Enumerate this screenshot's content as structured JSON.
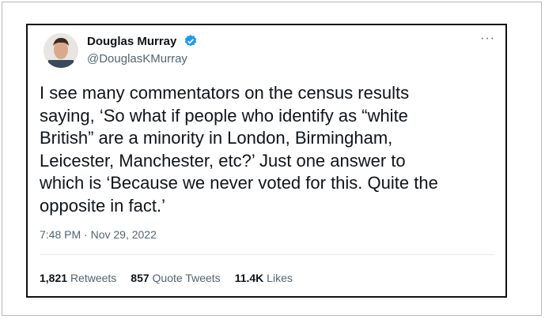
{
  "user": {
    "name": "Douglas Murray",
    "handle": "@DouglasKMurray"
  },
  "tweet": {
    "text_lines": [
      "I see many commentators on the census results",
      "saying, ‘So what if people who identify as “white",
      "British” are a minority in London, Birmingham,",
      "Leicester, Manchester, etc?’ Just one answer to",
      "which is ‘Because we never voted for this. Quite the",
      "opposite in fact.’"
    ],
    "timestamp": "7:48 PM · Nov 29, 2022"
  },
  "stats": [
    {
      "count": "1,821",
      "label": "Retweets"
    },
    {
      "count": "857",
      "label": "Quote Tweets"
    },
    {
      "count": "11.4K",
      "label": "Likes"
    }
  ]
}
